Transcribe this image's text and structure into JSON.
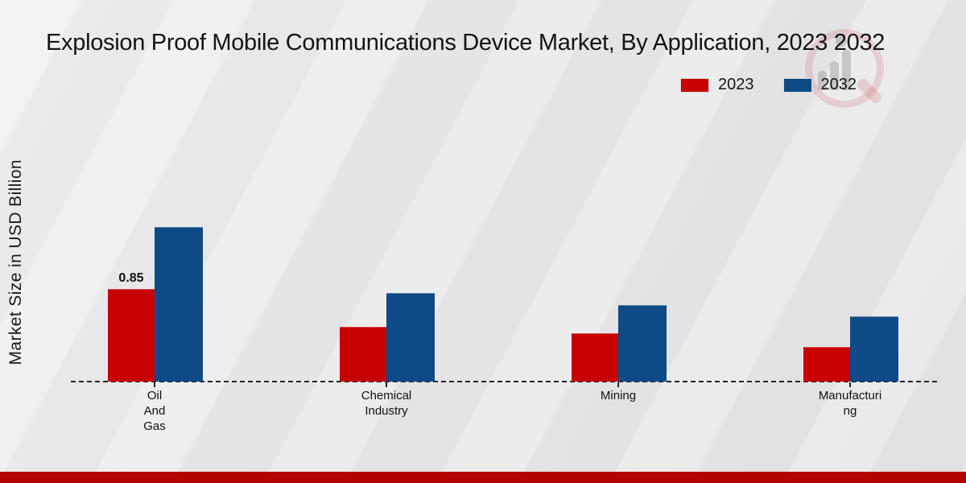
{
  "title": {
    "text": "Explosion Proof Mobile Communications Device Market, By Application, 2023 2032"
  },
  "legend": [
    {
      "label": "2023",
      "color": "#c70102"
    },
    {
      "label": "2032",
      "color": "#0e4a85"
    }
  ],
  "watermark": {
    "icon": "magnifier-growth-bars-logo"
  },
  "footer": {
    "band_color": "#b20300"
  },
  "chart_data": {
    "type": "bar",
    "title": "Explosion Proof Mobile Communications Device Market, By Application, 2023 2032",
    "ylabel": "Market Size in USD Billion",
    "xlabel": "",
    "ylim": [
      0,
      1.6
    ],
    "grid": false,
    "legend_position": "top-right",
    "baseline_style": "dashed",
    "categories": [
      "Oil And Gas",
      "Chemical Industry",
      "Mining",
      "Manufacturing"
    ],
    "category_display_lines": [
      [
        "Oil",
        "And",
        "Gas"
      ],
      [
        "Chemical",
        "Industry"
      ],
      [
        "Mining"
      ],
      [
        "Manufacturi",
        "ng"
      ]
    ],
    "series": [
      {
        "name": "2023",
        "color": "#c70102",
        "values": [
          0.85,
          0.5,
          0.44,
          0.32
        ]
      },
      {
        "name": "2032",
        "color": "#0e4a85",
        "values": [
          1.42,
          0.81,
          0.7,
          0.6
        ]
      }
    ],
    "bar_labels": [
      {
        "series_index": 0,
        "category_index": 0,
        "text": "0.85"
      }
    ]
  }
}
